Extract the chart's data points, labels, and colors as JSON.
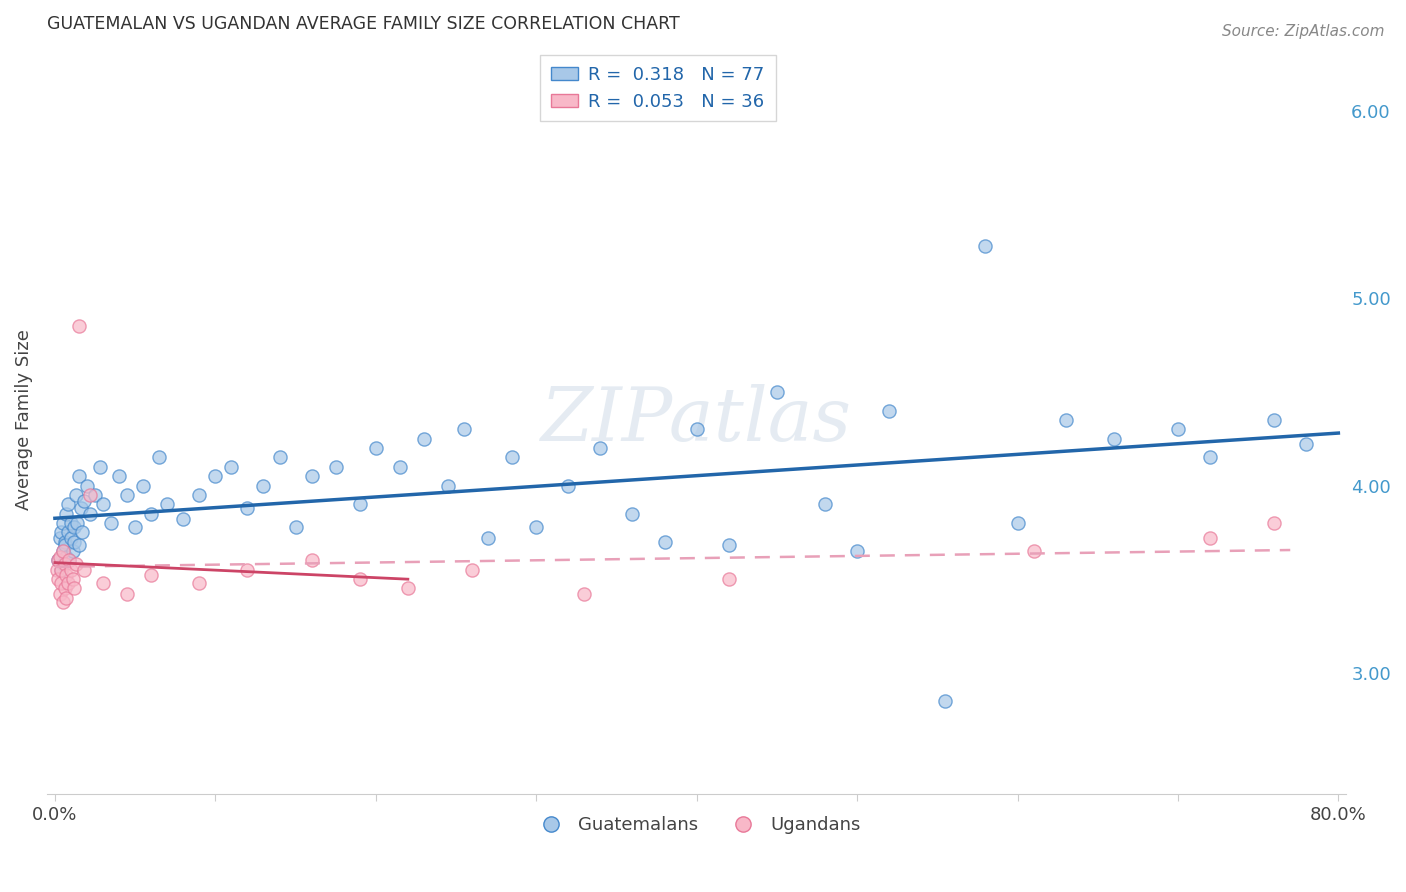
{
  "title": "GUATEMALAN VS UGANDAN AVERAGE FAMILY SIZE CORRELATION CHART",
  "source": "Source: ZipAtlas.com",
  "ylabel": "Average Family Size",
  "legend_label_1": "Guatemalans",
  "legend_label_2": "Ugandans",
  "R1": 0.318,
  "N1": 77,
  "R2": 0.053,
  "N2": 36,
  "color_blue_fill": "#a8c8e8",
  "color_blue_edge": "#4488cc",
  "color_blue_line": "#2266aa",
  "color_pink_fill": "#f8b8c8",
  "color_pink_edge": "#e87898",
  "color_pink_line": "#cc4466",
  "color_pink_dash": "#e8a0b8",
  "color_right_axis": "#4499cc",
  "yticks_right": [
    3.0,
    4.0,
    5.0,
    6.0
  ],
  "ylim": [
    2.35,
    6.35
  ],
  "xlim": [
    -0.005,
    0.805
  ],
  "background": "#ffffff",
  "guat_x": [
    0.002,
    0.003,
    0.004,
    0.004,
    0.005,
    0.005,
    0.005,
    0.006,
    0.006,
    0.007,
    0.007,
    0.008,
    0.008,
    0.009,
    0.01,
    0.01,
    0.011,
    0.012,
    0.012,
    0.013,
    0.014,
    0.015,
    0.015,
    0.016,
    0.017,
    0.018,
    0.02,
    0.022,
    0.025,
    0.028,
    0.03,
    0.035,
    0.04,
    0.045,
    0.05,
    0.055,
    0.06,
    0.065,
    0.07,
    0.08,
    0.09,
    0.1,
    0.11,
    0.12,
    0.13,
    0.14,
    0.15,
    0.16,
    0.175,
    0.19,
    0.2,
    0.215,
    0.23,
    0.245,
    0.255,
    0.27,
    0.285,
    0.3,
    0.32,
    0.34,
    0.36,
    0.38,
    0.4,
    0.42,
    0.45,
    0.48,
    0.5,
    0.52,
    0.555,
    0.58,
    0.6,
    0.63,
    0.66,
    0.7,
    0.72,
    0.76,
    0.78
  ],
  "guat_y": [
    3.6,
    3.72,
    3.55,
    3.75,
    3.65,
    3.8,
    3.58,
    3.7,
    3.68,
    3.62,
    3.85,
    3.75,
    3.9,
    3.6,
    3.72,
    3.8,
    3.65,
    3.78,
    3.7,
    3.95,
    3.8,
    4.05,
    3.68,
    3.88,
    3.75,
    3.92,
    4.0,
    3.85,
    3.95,
    4.1,
    3.9,
    3.8,
    4.05,
    3.95,
    3.78,
    4.0,
    3.85,
    4.15,
    3.9,
    3.82,
    3.95,
    4.05,
    4.1,
    3.88,
    4.0,
    4.15,
    3.78,
    4.05,
    4.1,
    3.9,
    4.2,
    4.1,
    4.25,
    4.0,
    4.3,
    3.72,
    4.15,
    3.78,
    4.0,
    4.2,
    3.85,
    3.7,
    4.3,
    3.68,
    4.5,
    3.9,
    3.65,
    4.4,
    2.85,
    5.28,
    3.8,
    4.35,
    4.25,
    4.3,
    4.15,
    4.35,
    4.22
  ],
  "ugand_x": [
    0.001,
    0.002,
    0.002,
    0.003,
    0.003,
    0.004,
    0.004,
    0.005,
    0.005,
    0.006,
    0.006,
    0.007,
    0.007,
    0.008,
    0.009,
    0.01,
    0.011,
    0.012,
    0.013,
    0.015,
    0.018,
    0.022,
    0.03,
    0.045,
    0.06,
    0.09,
    0.12,
    0.16,
    0.19,
    0.22,
    0.26,
    0.33,
    0.42,
    0.61,
    0.72,
    0.76
  ],
  "ugand_y": [
    3.55,
    3.5,
    3.6,
    3.42,
    3.62,
    3.48,
    3.55,
    3.38,
    3.65,
    3.45,
    3.58,
    3.4,
    3.52,
    3.48,
    3.6,
    3.55,
    3.5,
    3.45,
    3.58,
    4.85,
    3.55,
    3.95,
    3.48,
    3.42,
    3.52,
    3.48,
    3.55,
    3.6,
    3.5,
    3.45,
    3.55,
    3.42,
    3.5,
    3.65,
    3.72,
    3.8
  ]
}
